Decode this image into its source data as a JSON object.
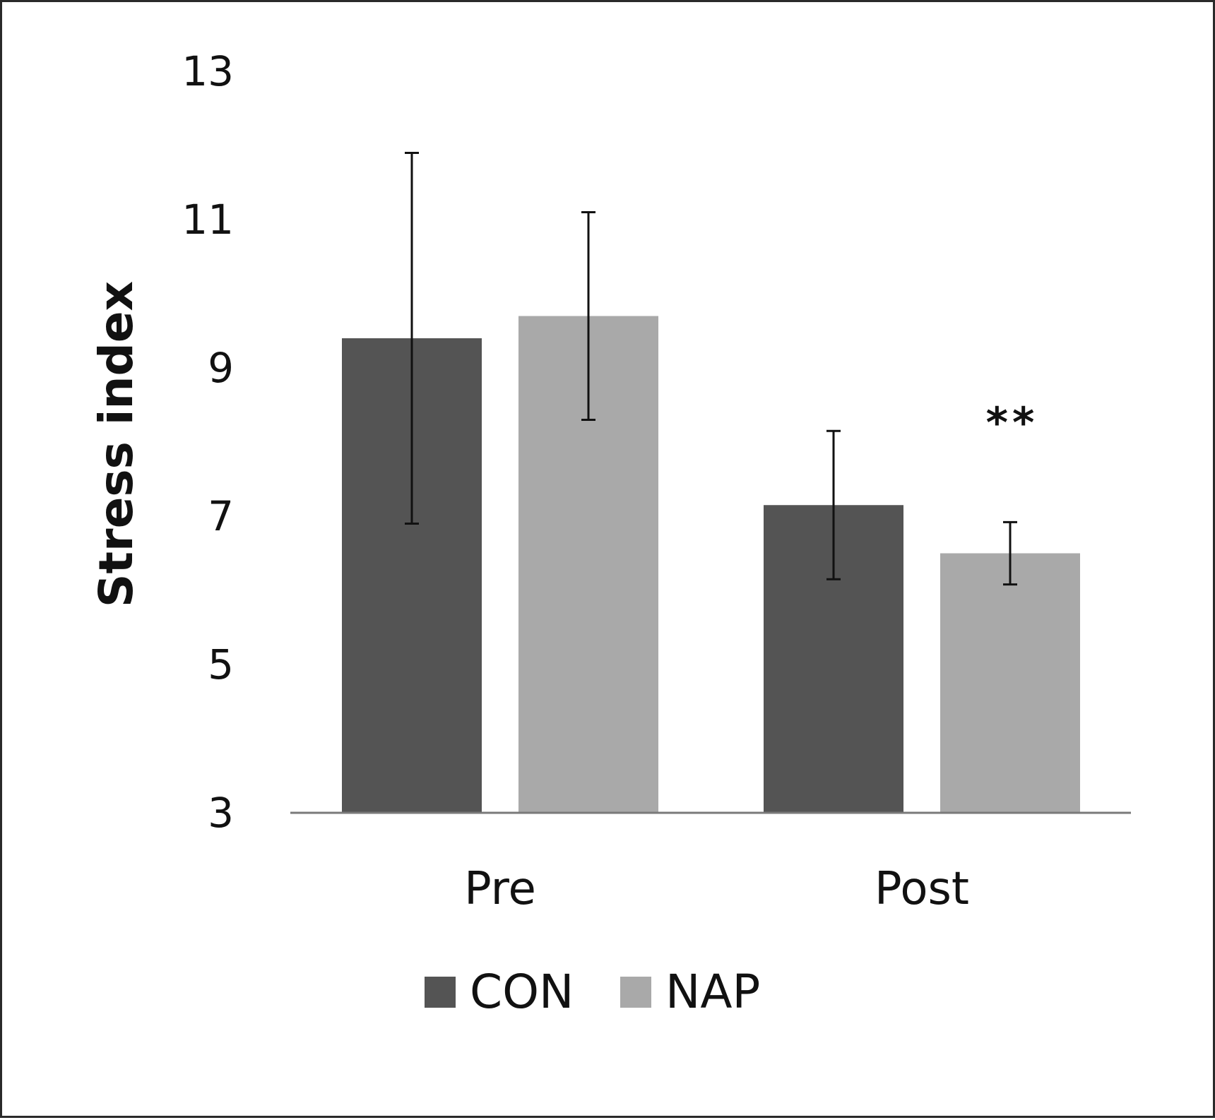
{
  "chart_data": {
    "type": "bar",
    "categories": [
      "Pre",
      "Post"
    ],
    "series": [
      {
        "name": "CON",
        "color": "#545454",
        "values": [
          9.4,
          7.15
        ],
        "error": [
          2.5,
          1.0
        ]
      },
      {
        "name": "NAP",
        "color": "#a9a9a9",
        "values": [
          9.7,
          6.5
        ],
        "error": [
          1.4,
          0.42
        ]
      }
    ],
    "ylabel": "Stress index",
    "xlabel": "",
    "title": "",
    "ylim": [
      3,
      13
    ],
    "yticks": [
      3,
      5,
      7,
      9,
      11,
      13
    ],
    "grid": false,
    "legend": "bottom",
    "annotations": [
      {
        "category": "Post",
        "series": "NAP",
        "text": "**"
      }
    ]
  }
}
